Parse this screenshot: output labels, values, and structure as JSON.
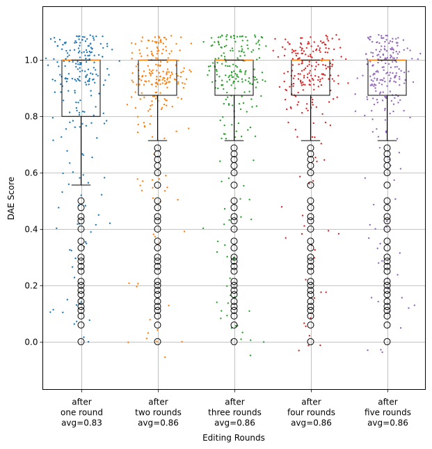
{
  "chart_data": {
    "type": "box",
    "title": "",
    "xlabel": "Editing Rounds",
    "ylabel": "DAE Score",
    "ylim": [
      -0.17,
      1.19
    ],
    "yticks": [
      0.0,
      0.2,
      0.4,
      0.6,
      0.8,
      1.0
    ],
    "ytick_labels": [
      "0.0",
      "0.2",
      "0.4",
      "0.6",
      "0.8",
      "1.0"
    ],
    "grid": true,
    "categories": [
      {
        "lines": [
          "after",
          "one round",
          "avg=0.83"
        ]
      },
      {
        "lines": [
          "after",
          "two rounds",
          "avg=0.86"
        ]
      },
      {
        "lines": [
          "after",
          "three rounds",
          "avg=0.86"
        ]
      },
      {
        "lines": [
          "after",
          "four rounds",
          "avg=0.86"
        ]
      },
      {
        "lines": [
          "after",
          "five rounds",
          "avg=0.86"
        ]
      }
    ],
    "series": [
      {
        "name": "after one round",
        "avg": 0.83,
        "color": "#1f77b4",
        "box": {
          "q1": 0.8,
          "median": 1.0,
          "q3": 1.0,
          "whisker_low": 0.556,
          "whisker_high": 1.0
        },
        "outliers": [
          0.5,
          0.476,
          0.444,
          0.429,
          0.4,
          0.357,
          0.333,
          0.3,
          0.286,
          0.267,
          0.25,
          0.214,
          0.2,
          0.182,
          0.167,
          0.143,
          0.125,
          0.111,
          0.091,
          0.059,
          0.0
        ]
      },
      {
        "name": "after two rounds",
        "avg": 0.86,
        "color": "#ff7f0e",
        "box": {
          "q1": 0.875,
          "median": 1.0,
          "q3": 1.0,
          "whisker_low": 0.714,
          "whisker_high": 1.0
        },
        "outliers": [
          0.688,
          0.667,
          0.647,
          0.625,
          0.6,
          0.556,
          0.5,
          0.476,
          0.444,
          0.429,
          0.4,
          0.357,
          0.333,
          0.3,
          0.286,
          0.267,
          0.25,
          0.214,
          0.2,
          0.182,
          0.167,
          0.143,
          0.125,
          0.111,
          0.091,
          0.059,
          0.0
        ]
      },
      {
        "name": "after three rounds",
        "avg": 0.86,
        "color": "#2ca02c",
        "box": {
          "q1": 0.875,
          "median": 1.0,
          "q3": 1.0,
          "whisker_low": 0.714,
          "whisker_high": 1.0
        },
        "outliers": [
          0.688,
          0.667,
          0.647,
          0.625,
          0.6,
          0.556,
          0.5,
          0.476,
          0.444,
          0.429,
          0.4,
          0.357,
          0.333,
          0.3,
          0.286,
          0.267,
          0.25,
          0.214,
          0.2,
          0.182,
          0.167,
          0.143,
          0.125,
          0.111,
          0.091,
          0.059,
          0.0
        ]
      },
      {
        "name": "after four rounds",
        "avg": 0.86,
        "color": "#d62728",
        "box": {
          "q1": 0.875,
          "median": 1.0,
          "q3": 1.0,
          "whisker_low": 0.714,
          "whisker_high": 1.0
        },
        "outliers": [
          0.688,
          0.667,
          0.647,
          0.625,
          0.6,
          0.556,
          0.5,
          0.476,
          0.444,
          0.429,
          0.4,
          0.357,
          0.333,
          0.3,
          0.286,
          0.267,
          0.25,
          0.214,
          0.2,
          0.182,
          0.167,
          0.143,
          0.125,
          0.111,
          0.091,
          0.059,
          0.0
        ]
      },
      {
        "name": "after five rounds",
        "avg": 0.86,
        "color": "#9467bd",
        "box": {
          "q1": 0.875,
          "median": 1.0,
          "q3": 1.0,
          "whisker_low": 0.714,
          "whisker_high": 1.0
        },
        "outliers": [
          0.688,
          0.667,
          0.647,
          0.625,
          0.6,
          0.556,
          0.5,
          0.476,
          0.444,
          0.429,
          0.4,
          0.357,
          0.333,
          0.3,
          0.286,
          0.267,
          0.25,
          0.214,
          0.2,
          0.182,
          0.167,
          0.143,
          0.125,
          0.111,
          0.091,
          0.059,
          0.0
        ]
      }
    ],
    "jitter_points_per_series": 220,
    "median_color": "#ff7f0e"
  }
}
